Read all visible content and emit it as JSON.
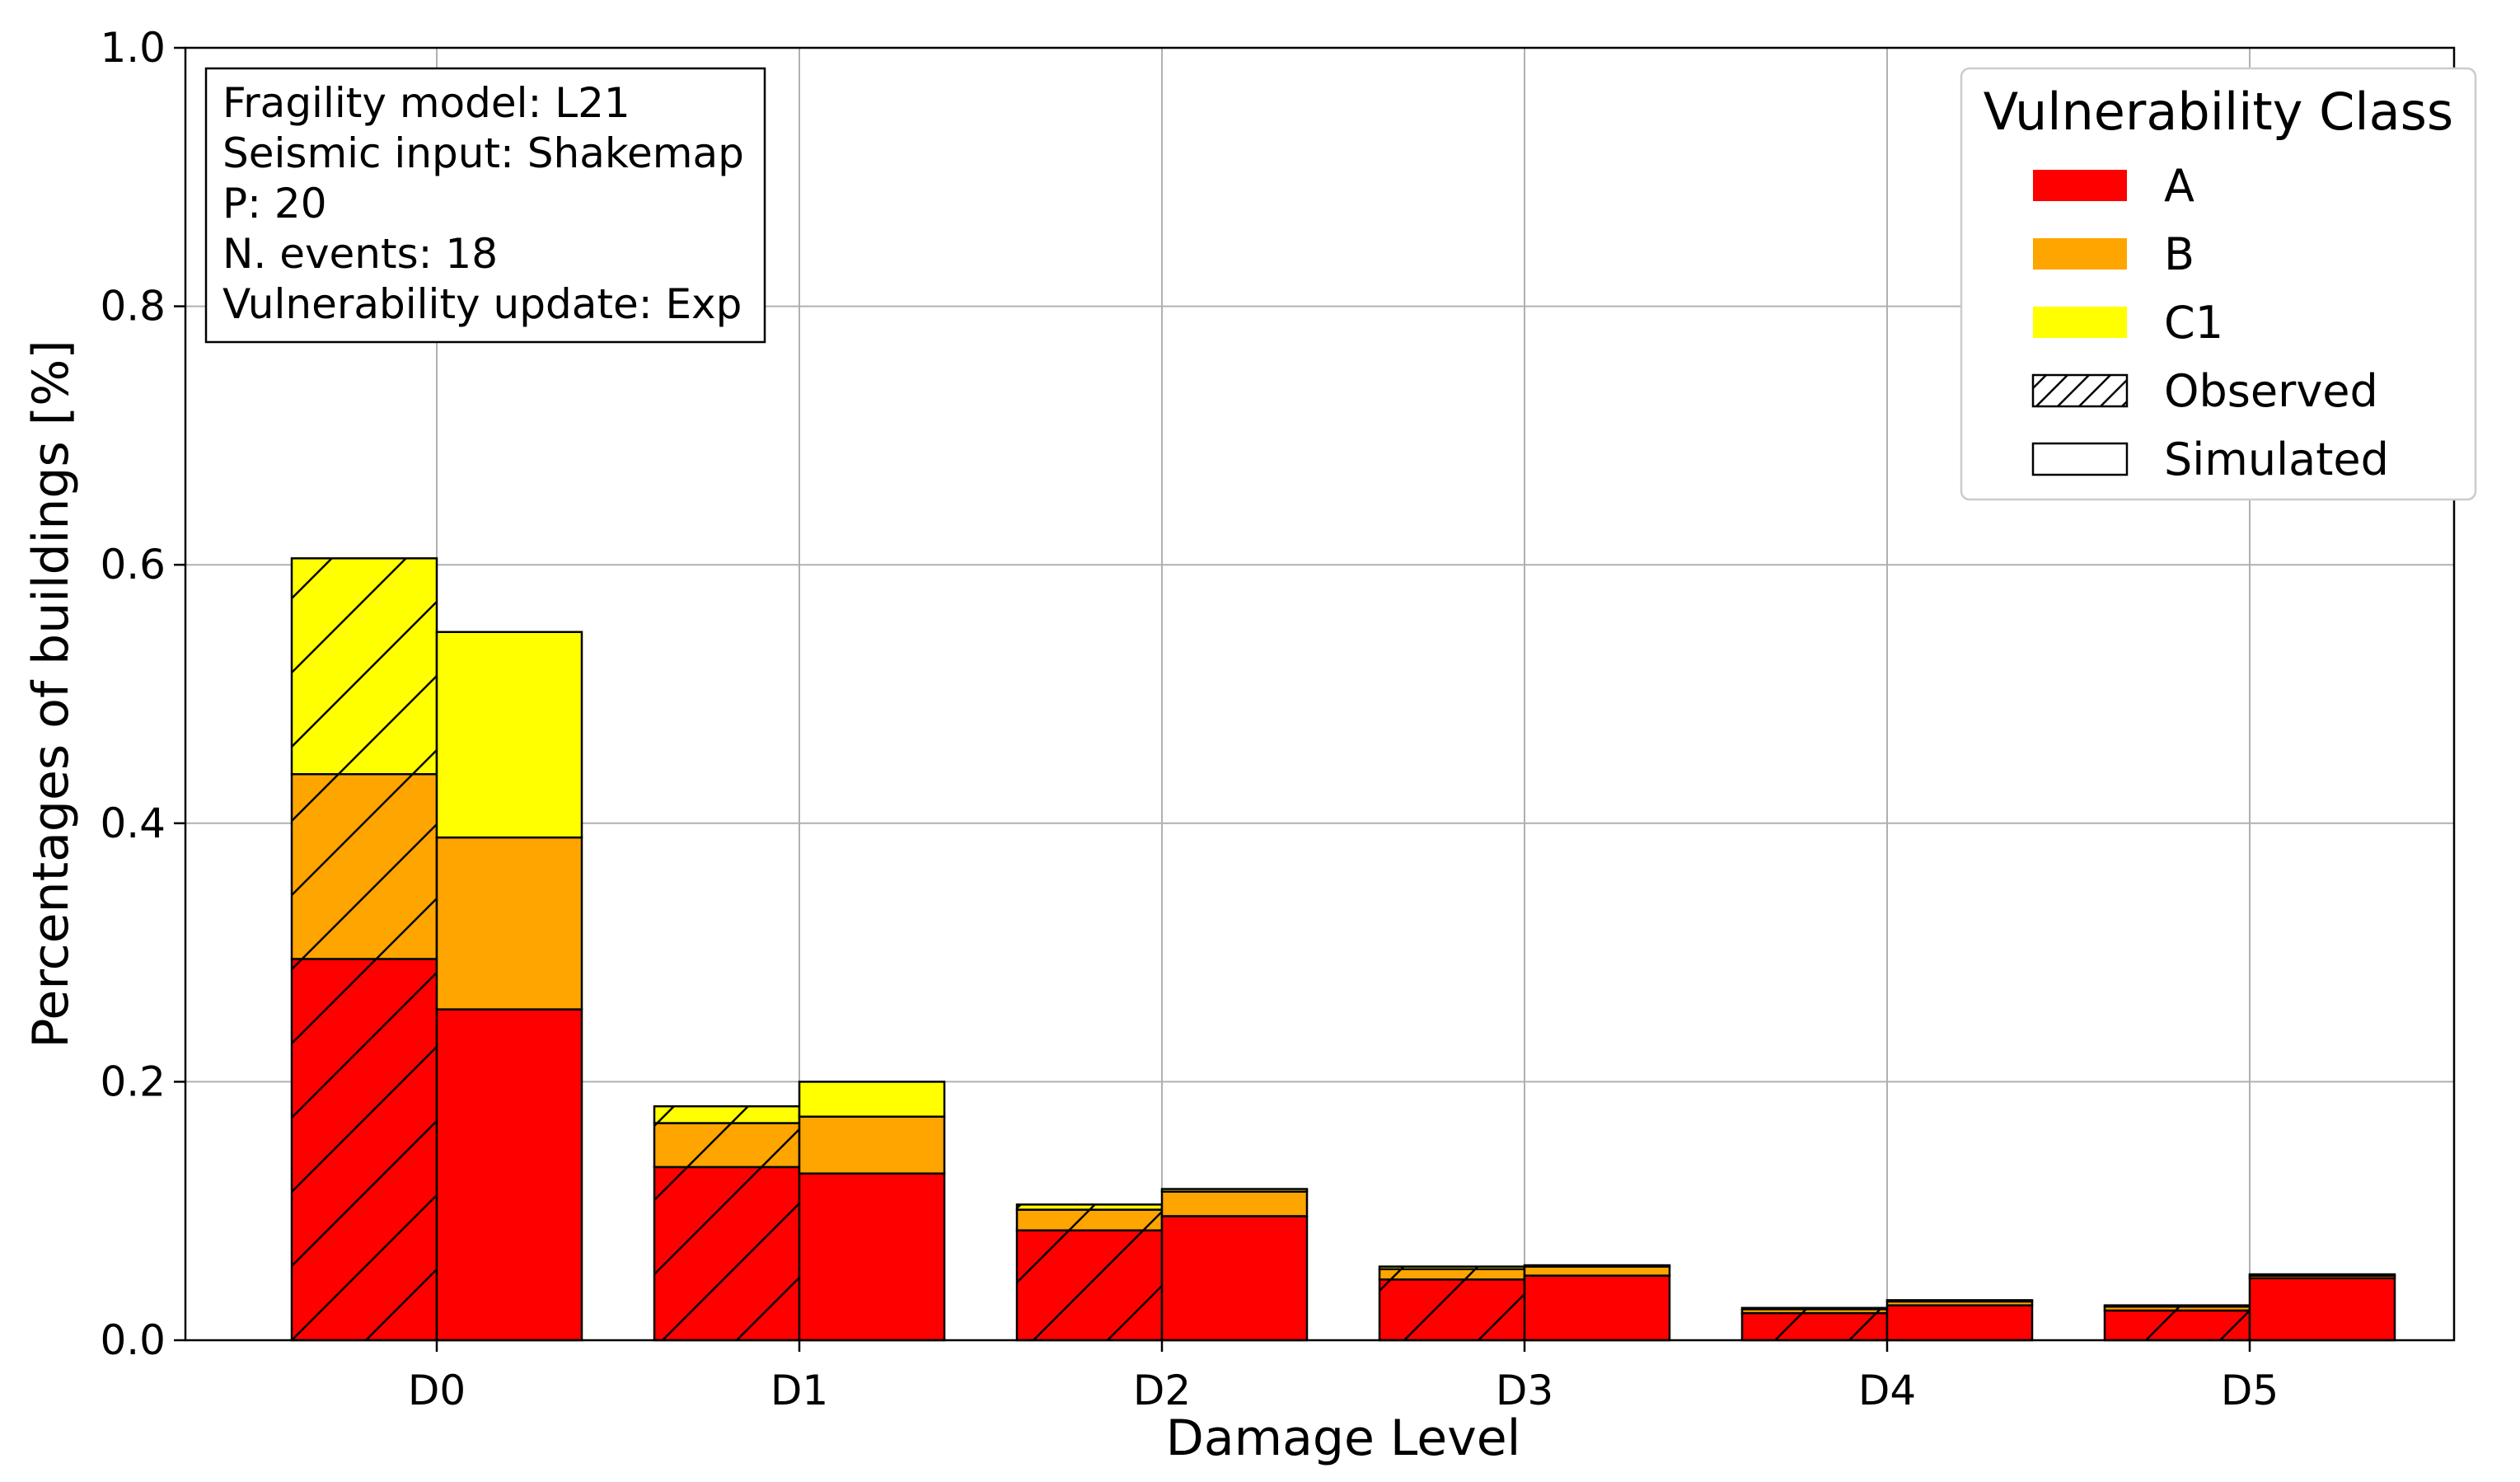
{
  "chart_data": {
    "type": "bar",
    "subtype": "stacked-grouped",
    "xlabel": "Damage Level",
    "ylabel": "Percentages of buildings [%]",
    "ylim": [
      0,
      1.0
    ],
    "yticks": [
      "0.0",
      "0.2",
      "0.4",
      "0.6",
      "0.8",
      "1.0"
    ],
    "ytick_values": [
      0,
      0.2,
      0.4,
      0.6,
      0.8,
      1.0
    ],
    "categories": [
      "D0",
      "D1",
      "D2",
      "D3",
      "D4",
      "D5"
    ],
    "grid": true,
    "stack_classes": [
      {
        "name": "A",
        "color": "#ff0000"
      },
      {
        "name": "B",
        "color": "#ffa500"
      },
      {
        "name": "C1",
        "color": "#ffff00"
      }
    ],
    "groups": [
      {
        "name": "Observed",
        "hatch": true,
        "series": [
          {
            "class": "A",
            "values": [
              0.295,
              0.134,
              0.085,
              0.047,
              0.021,
              0.023
            ]
          },
          {
            "class": "B",
            "values": [
              0.143,
              0.034,
              0.016,
              0.008,
              0.003,
              0.003
            ]
          },
          {
            "class": "C1",
            "values": [
              0.167,
              0.013,
              0.004,
              0.002,
              0.001,
              0.001
            ]
          }
        ]
      },
      {
        "name": "Simulated",
        "hatch": false,
        "series": [
          {
            "class": "A",
            "values": [
              0.256,
              0.129,
              0.096,
              0.05,
              0.027,
              0.048
            ]
          },
          {
            "class": "B",
            "values": [
              0.133,
              0.044,
              0.019,
              0.007,
              0.003,
              0.002
            ]
          },
          {
            "class": "C1",
            "values": [
              0.159,
              0.027,
              0.002,
              0.001,
              0.001,
              0.001
            ]
          }
        ]
      }
    ],
    "info_box": {
      "placement": "top-left",
      "lines": [
        "Fragility model: L21",
        "Seismic input: Shakemap",
        "P: 20",
        "N. events: 18",
        "Vulnerability update: Exp"
      ]
    },
    "legend": {
      "placement": "top-right",
      "title": "Vulnerability Class",
      "entries": [
        {
          "label": "A",
          "color": "#ff0000",
          "hatch": false
        },
        {
          "label": "B",
          "color": "#ffa500",
          "hatch": false
        },
        {
          "label": "C1",
          "color": "#ffff00",
          "hatch": false
        },
        {
          "label": "Observed",
          "color": "#ffffff",
          "hatch": true
        },
        {
          "label": "Simulated",
          "color": "#ffffff",
          "hatch": false
        }
      ]
    }
  }
}
